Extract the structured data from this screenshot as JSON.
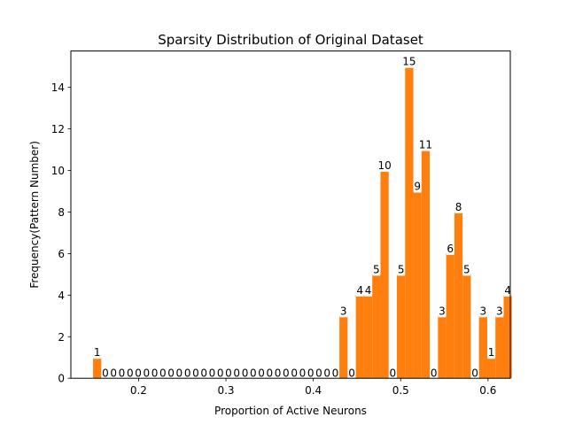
{
  "chart_data": {
    "type": "bar",
    "title": "Sparsity Distribution of Original Dataset",
    "xlabel": "Proportion of Active Neurons",
    "ylabel": "Frequency(Pattern Number)",
    "xlim": [
      0.1225,
      0.6255
    ],
    "ylim": [
      0,
      15.75
    ],
    "xticks": [
      0.2,
      0.3,
      0.4,
      0.5,
      0.6
    ],
    "xtick_labels": [
      "0.2",
      "0.3",
      "0.4",
      "0.5",
      "0.6"
    ],
    "yticks": [
      0,
      2,
      4,
      6,
      8,
      10,
      12,
      14
    ],
    "ytick_labels": [
      "0",
      "2",
      "4",
      "6",
      "8",
      "10",
      "12",
      "14"
    ],
    "bin_start": 0.1479,
    "bin_width": 0.0094,
    "values": [
      1,
      0,
      0,
      0,
      0,
      0,
      0,
      0,
      0,
      0,
      0,
      0,
      0,
      0,
      0,
      0,
      0,
      0,
      0,
      0,
      0,
      0,
      0,
      0,
      0,
      0,
      0,
      0,
      0,
      0,
      3,
      0,
      4,
      4,
      5,
      10,
      0,
      5,
      15,
      9,
      11,
      0,
      3,
      6,
      8,
      5,
      0,
      3,
      1,
      3,
      4
    ],
    "color": "#ff7f0e",
    "grid": false,
    "legend": "none"
  }
}
